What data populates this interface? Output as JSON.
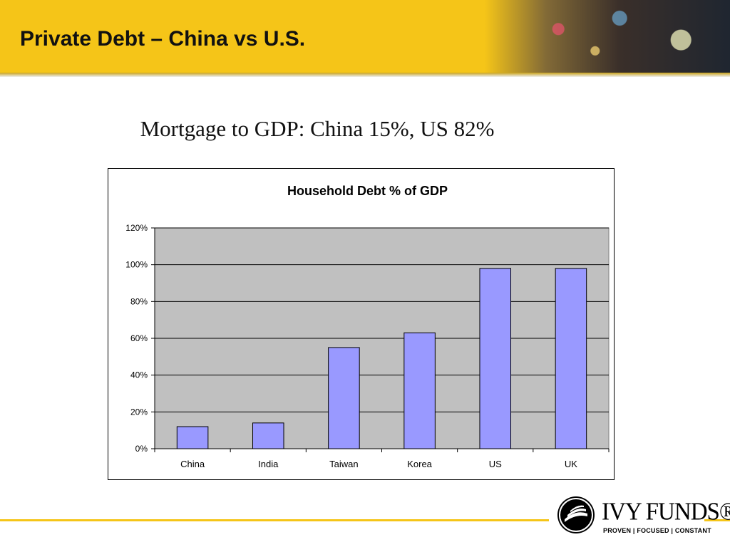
{
  "slide": {
    "title": "Private Debt – China vs U.S.",
    "subtitle": "Mortgage to GDP: China 15%, US 82%"
  },
  "logo": {
    "name": "IVY FUNDS®",
    "tagline": "PROVEN | FOCUSED | CONSTANT"
  },
  "colors": {
    "header_band": "#f5c518",
    "plot_background": "#c0c0c0",
    "bar_fill": "#9999ff",
    "bar_stroke": "#000000"
  },
  "chart_data": {
    "type": "bar",
    "title": "Household Debt % of GDP",
    "xlabel": "",
    "ylabel": "",
    "categories": [
      "China",
      "India",
      "Taiwan",
      "Korea",
      "US",
      "UK"
    ],
    "values": [
      12,
      14,
      55,
      63,
      98,
      98
    ],
    "ylim": [
      0,
      120
    ],
    "yticks": [
      0,
      20,
      40,
      60,
      80,
      100,
      120
    ],
    "ytick_labels": [
      "0%",
      "20%",
      "40%",
      "60%",
      "80%",
      "100%",
      "120%"
    ],
    "grid": true,
    "legend": "none"
  }
}
